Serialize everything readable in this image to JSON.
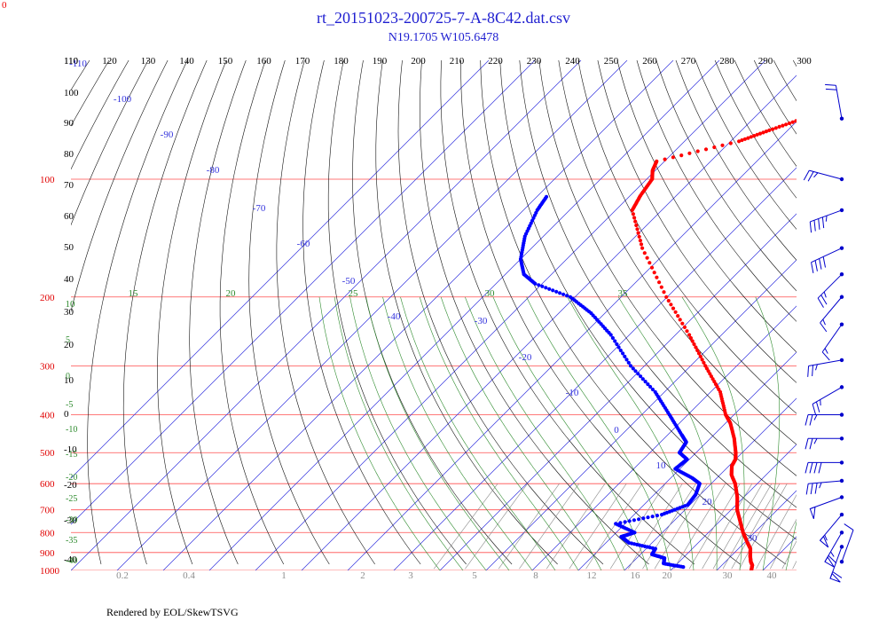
{
  "title": "rt_20151023-200725-7-A-8C42.dat.csv",
  "subtitle": "N19.1705 W105.6478",
  "footer": "Rendered by EOL/SkewTSVG",
  "corner_label": "0",
  "colors": {
    "title": "#1f1fd0",
    "isobar": "#ff4d4d",
    "isotherm": "#3333dd",
    "dry_adiabat": "#111111",
    "mixing_ratio": "#8c8c8c",
    "moist_adiabat": "#2e8b2e",
    "temperature": "#ff0000",
    "dewpoint": "#0000ff",
    "wind": "#0000cc"
  },
  "chart_data": {
    "type": "scatter",
    "diagram": "skew-T log-P",
    "pressure_levels": [
      100,
      200,
      300,
      400,
      500,
      600,
      700,
      800,
      900,
      1000
    ],
    "pressure_range": [
      100,
      1000
    ],
    "log_pressure_axis": true,
    "top_axis_labels": [
      110,
      120,
      130,
      140,
      150,
      160,
      170,
      180,
      190,
      200,
      210,
      220,
      230,
      240,
      250,
      260,
      270,
      280,
      290,
      300
    ],
    "left_theta_labels": [
      110,
      100,
      90,
      80,
      70,
      60,
      50,
      40,
      30,
      20,
      10,
      0,
      -10,
      -20,
      -30,
      -40
    ],
    "isotherm_labels": [
      -110,
      -100,
      -90,
      -80,
      -70,
      -60,
      -50,
      -40,
      -30,
      -20,
      -10,
      0,
      10,
      20,
      30
    ],
    "moist_adiabat_labels": [
      10,
      15,
      20,
      25,
      30,
      35
    ],
    "left_moist_labels": [
      5,
      0,
      -5,
      -10,
      -15,
      -20,
      -25,
      -30,
      -35,
      -40
    ],
    "mixing_ratio_labels": [
      "0.2",
      "0.4",
      "1",
      "2",
      "3",
      "5",
      "8",
      "12",
      "16",
      "20",
      "30",
      "40"
    ],
    "temperature_profile": [
      {
        "p": 1000,
        "t": 27.5
      },
      {
        "p": 970,
        "t": 26.6
      },
      {
        "p": 950,
        "t": 25.5
      },
      {
        "p": 920,
        "t": 24.2
      },
      {
        "p": 880,
        "t": 22.6
      },
      {
        "p": 850,
        "t": 20.7
      },
      {
        "p": 800,
        "t": 17.5
      },
      {
        "p": 750,
        "t": 14.5
      },
      {
        "p": 700,
        "t": 11.3
      },
      {
        "p": 650,
        "t": 8.6
      },
      {
        "p": 600,
        "t": 5.2
      },
      {
        "p": 570,
        "t": 2.5
      },
      {
        "p": 540,
        "t": 0.6
      },
      {
        "p": 520,
        "t": 0.0
      },
      {
        "p": 500,
        "t": -1.4
      },
      {
        "p": 460,
        "t": -4.8
      },
      {
        "p": 420,
        "t": -9.0
      },
      {
        "p": 400,
        "t": -11.8
      },
      {
        "p": 350,
        "t": -17.9
      },
      {
        "p": 300,
        "t": -26.8
      },
      {
        "p": 250,
        "t": -37.0
      },
      {
        "p": 200,
        "t": -50.2
      },
      {
        "p": 150,
        "t": -66.0
      },
      {
        "p": 120,
        "t": -76.4
      },
      {
        "p": 110,
        "t": -77.8
      },
      {
        "p": 100,
        "t": -78.8
      },
      {
        "p": 95,
        "t": -80.6
      },
      {
        "p": 90,
        "t": -81.7
      },
      {
        "p": 80,
        "t": -68.2
      },
      {
        "p": 75,
        "t": -64.0
      },
      {
        "p": 70,
        "t": -59.3
      }
    ],
    "dewpoint_profile": [
      {
        "p": 980,
        "t": 12.0
      },
      {
        "p": 960,
        "t": 7.0
      },
      {
        "p": 930,
        "t": 6.0
      },
      {
        "p": 910,
        "t": 2.5
      },
      {
        "p": 880,
        "t": 2.0
      },
      {
        "p": 850,
        "t": -5.0
      },
      {
        "p": 820,
        "t": -8.0
      },
      {
        "p": 800,
        "t": -6.0
      },
      {
        "p": 760,
        "t": -12.0
      },
      {
        "p": 720,
        "t": -4.0
      },
      {
        "p": 680,
        "t": -0.5
      },
      {
        "p": 640,
        "t": -1.0
      },
      {
        "p": 600,
        "t": -2.5
      },
      {
        "p": 580,
        "t": -5.4
      },
      {
        "p": 550,
        "t": -11.0
      },
      {
        "p": 520,
        "t": -10.5
      },
      {
        "p": 500,
        "t": -13.6
      },
      {
        "p": 470,
        "t": -14.4
      },
      {
        "p": 450,
        "t": -17.0
      },
      {
        "p": 400,
        "t": -24.0
      },
      {
        "p": 350,
        "t": -32.0
      },
      {
        "p": 300,
        "t": -43.0
      },
      {
        "p": 250,
        "t": -54.0
      },
      {
        "p": 220,
        "t": -63.0
      },
      {
        "p": 200,
        "t": -71.0
      },
      {
        "p": 185,
        "t": -81.5
      },
      {
        "p": 175,
        "t": -86.0
      },
      {
        "p": 160,
        "t": -90.0
      },
      {
        "p": 140,
        "t": -94.0
      },
      {
        "p": 120,
        "t": -97.0
      },
      {
        "p": 110,
        "t": -98.0
      }
    ],
    "wind_barbs": [
      {
        "p": 70,
        "dir": 350,
        "kt": 20
      },
      {
        "p": 100,
        "dir": 285,
        "kt": 25
      },
      {
        "p": 120,
        "dir": 250,
        "kt": 45
      },
      {
        "p": 150,
        "dir": 245,
        "kt": 40
      },
      {
        "p": 175,
        "dir": 225,
        "kt": 25
      },
      {
        "p": 200,
        "dir": 220,
        "kt": 15
      },
      {
        "p": 235,
        "dir": 215,
        "kt": 15
      },
      {
        "p": 290,
        "dir": 260,
        "kt": 25
      },
      {
        "p": 340,
        "dir": 240,
        "kt": 25
      },
      {
        "p": 400,
        "dir": 270,
        "kt": 25
      },
      {
        "p": 460,
        "dir": 270,
        "kt": 25
      },
      {
        "p": 530,
        "dir": 270,
        "kt": 40
      },
      {
        "p": 590,
        "dir": 265,
        "kt": 35
      },
      {
        "p": 650,
        "dir": 250,
        "kt": 50
      },
      {
        "p": 720,
        "dir": 220,
        "kt": 55
      },
      {
        "p": 800,
        "dir": 210,
        "kt": 65
      },
      {
        "p": 870,
        "dir": 200,
        "kt": 60
      },
      {
        "p": 950,
        "dir": 20,
        "kt": 10
      }
    ]
  }
}
